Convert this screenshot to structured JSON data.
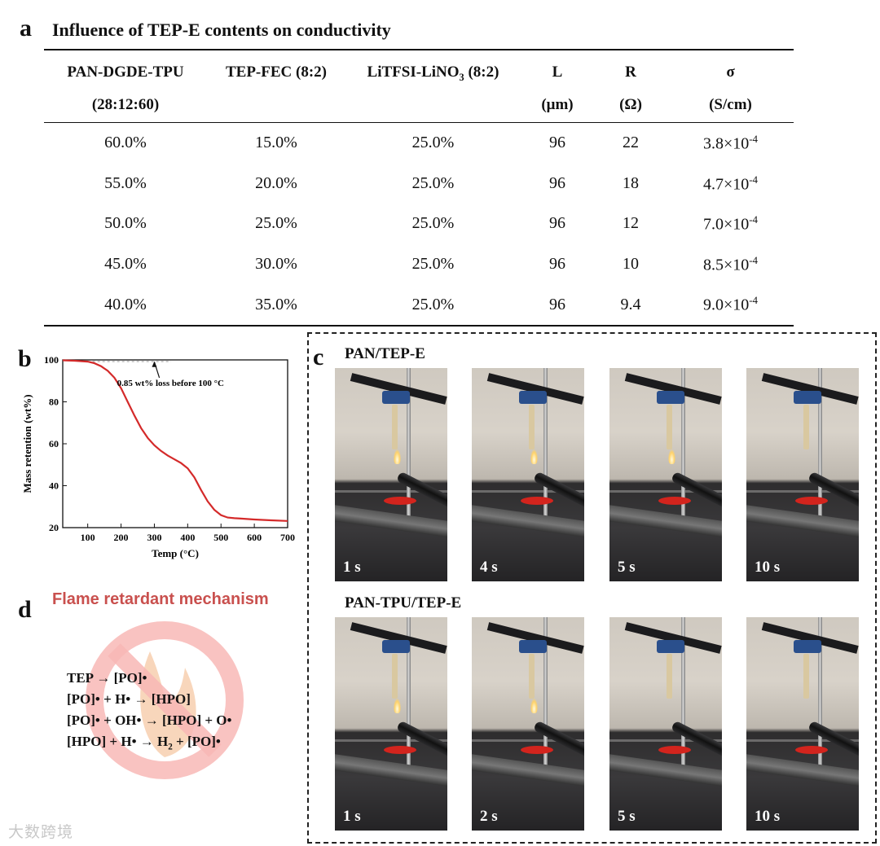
{
  "panel_a": {
    "letter": "a",
    "title": "Influence of TEP-E contents on conductivity",
    "headers": {
      "c1_line1": "PAN-DGDE-TPU",
      "c1_line2": "(28:12:60)",
      "c2": "TEP-FEC (8:2)",
      "c3_pre": "LiTFSI-LiNO",
      "c3_sub": "3",
      "c3_post": " (8:2)",
      "c4_line1": "L",
      "c4_line2": "(μm)",
      "c5_line1": "R",
      "c5_line2": "(Ω)",
      "c6_line1": "σ",
      "c6_line2": "(S/cm)"
    },
    "rows": [
      {
        "pdt": "60.0%",
        "tep": "15.0%",
        "li": "25.0%",
        "L": "96",
        "R": "22",
        "sigma": "3.8×10",
        "exp": "-4"
      },
      {
        "pdt": "55.0%",
        "tep": "20.0%",
        "li": "25.0%",
        "L": "96",
        "R": "18",
        "sigma": "4.7×10",
        "exp": "-4"
      },
      {
        "pdt": "50.0%",
        "tep": "25.0%",
        "li": "25.0%",
        "L": "96",
        "R": "12",
        "sigma": "7.0×10",
        "exp": "-4"
      },
      {
        "pdt": "45.0%",
        "tep": "30.0%",
        "li": "25.0%",
        "L": "96",
        "R": "10",
        "sigma": "8.5×10",
        "exp": "-4"
      },
      {
        "pdt": "40.0%",
        "tep": "35.0%",
        "li": "25.0%",
        "L": "96",
        "R": "9.4",
        "sigma": "9.0×10",
        "exp": "-4"
      }
    ]
  },
  "panel_b": {
    "letter": "b",
    "chart_data": {
      "type": "line",
      "xlabel": "Temp (°C)",
      "ylabel": "Mass retention (wt%)",
      "xlim": [
        25,
        700
      ],
      "ylim": [
        20,
        100
      ],
      "xticks": [
        100,
        200,
        300,
        400,
        500,
        600,
        700
      ],
      "yticks": [
        20,
        40,
        60,
        80,
        100
      ],
      "annotation": "0.85 wt% loss before 100 °C",
      "series": [
        {
          "color": "#d42a2a",
          "x": [
            25,
            60,
            100,
            120,
            140,
            160,
            180,
            200,
            220,
            240,
            260,
            280,
            300,
            320,
            340,
            360,
            380,
            400,
            420,
            440,
            460,
            480,
            500,
            520,
            540,
            560,
            600,
            650,
            700
          ],
          "y": [
            99.8,
            99.6,
            99.2,
            98.4,
            97.0,
            94.8,
            91.5,
            86.5,
            80.0,
            73.5,
            67.5,
            62.8,
            59.3,
            56.6,
            54.4,
            52.6,
            50.8,
            48.3,
            44.0,
            38.0,
            32.5,
            28.5,
            26.0,
            24.8,
            24.5,
            24.3,
            23.9,
            23.5,
            23.2
          ]
        }
      ]
    }
  },
  "panel_c": {
    "letter": "c",
    "row1_label": "PAN/TEP-E",
    "row2_label": "PAN-TPU/TEP-E",
    "row1_times": [
      "1 s",
      "4 s",
      "5 s",
      "10 s"
    ],
    "row2_times": [
      "1 s",
      "2 s",
      "5 s",
      "10 s"
    ]
  },
  "panel_d": {
    "letter": "d",
    "title": "Flame retardant mechanism",
    "eq1": "TEP → [PO]•",
    "eq2": "[PO]• + H• → [HPO]",
    "eq3": "[PO]• + OH• → [HPO] + O•",
    "eq4_pre": "[HPO] + H• → H",
    "eq4_sub": "2",
    "eq4_post": " + [PO]•",
    "sign_color": "#f4a3a3",
    "flame_color": "#f6c9a6"
  },
  "watermark": "大数跨境"
}
